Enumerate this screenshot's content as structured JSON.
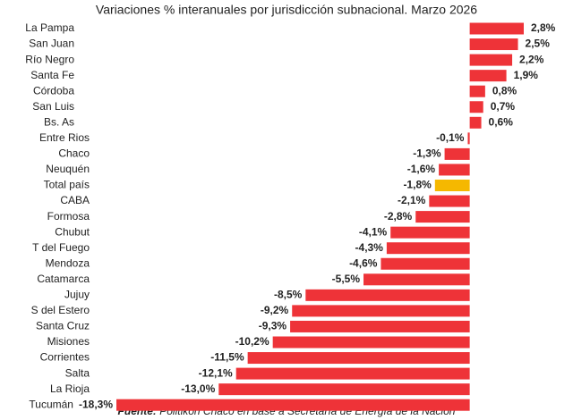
{
  "chart_data": {
    "type": "bar",
    "orientation": "horizontal",
    "title": "Variaciones % interanuales por jurisdicción subnacional. Marzo 2026",
    "categories": [
      "La Pampa",
      "San Juan",
      "Río Negro",
      "Santa Fe",
      "Córdoba",
      "San Luis",
      "Bs. As",
      "Entre Rios",
      "Chaco",
      "Neuquén",
      "Total país",
      "CABA",
      "Formosa",
      "Chubut",
      "T del Fuego",
      "Mendoza",
      "Catamarca",
      "Jujuy",
      "S del Estero",
      "Santa Cruz",
      "Misiones",
      "Corrientes",
      "Salta",
      "La Rioja",
      "Tucumán"
    ],
    "values": [
      2.8,
      2.5,
      2.2,
      1.9,
      0.8,
      0.7,
      0.6,
      -0.1,
      -1.3,
      -1.6,
      -1.8,
      -2.1,
      -2.8,
      -4.1,
      -4.3,
      -4.6,
      -5.5,
      -8.5,
      -9.2,
      -9.3,
      -10.2,
      -11.5,
      -12.1,
      -13.0,
      -18.3
    ],
    "value_labels": [
      "2,8%",
      "2,5%",
      "2,2%",
      "1,9%",
      "0,8%",
      "0,7%",
      "0,6%",
      "-0,1%",
      "-1,3%",
      "-1,6%",
      "-1,8%",
      "-2,1%",
      "-2,8%",
      "-4,1%",
      "-4,3%",
      "-4,6%",
      "-5,5%",
      "-8,5%",
      "-9,2%",
      "-9,3%",
      "-10,2%",
      "-11,5%",
      "-12,1%",
      "-13,0%",
      "-18,3%"
    ],
    "colors": [
      "#ee3338",
      "#ee3338",
      "#ee3338",
      "#ee3338",
      "#ee3338",
      "#ee3338",
      "#ee3338",
      "#ee3338",
      "#ee3338",
      "#ee3338",
      "#f5b800",
      "#ee3338",
      "#ee3338",
      "#ee3338",
      "#ee3338",
      "#ee3338",
      "#ee3338",
      "#ee3338",
      "#ee3338",
      "#ee3338",
      "#ee3338",
      "#ee3338",
      "#ee3338",
      "#ee3338",
      "#ee3338"
    ],
    "source_label": "Fuente:",
    "source": "Politikon Chaco en base a Secretaría de Energía de la Nación"
  }
}
